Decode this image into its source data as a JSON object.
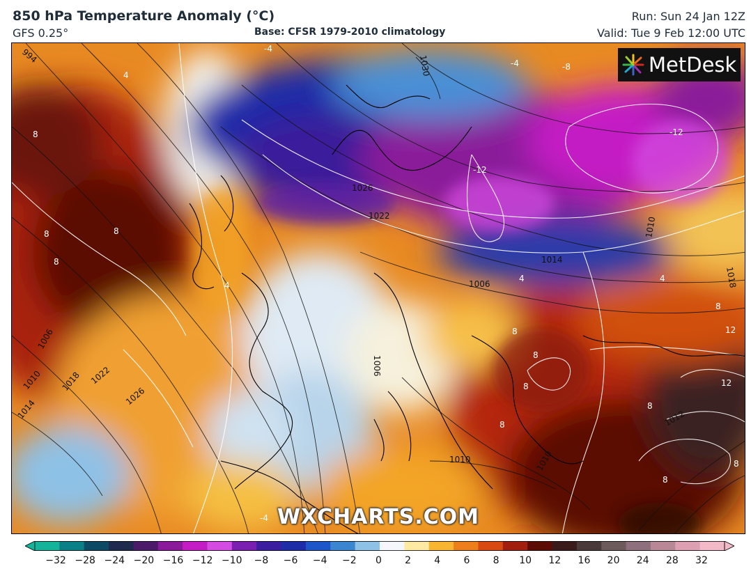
{
  "header": {
    "title": "850 hPa Temperature Anomaly (°C)",
    "model": "GFS 0.25°",
    "base": "Base: CFSR 1979-2010 climatology",
    "run": "Run: Sun 24 Jan 12Z",
    "valid": "Valid: Tue 9 Feb 12:00 UTC"
  },
  "logo": {
    "text": "MetDesk",
    "icon": "color-burst-icon"
  },
  "watermark": "WXCHARTS.COM",
  "colorbar": {
    "ticks": [
      "−32",
      "−28",
      "−24",
      "−20",
      "−16",
      "−12",
      "−10",
      "−8",
      "−6",
      "−4",
      "−2",
      "0",
      "2",
      "4",
      "6",
      "8",
      "10",
      "12",
      "16",
      "20",
      "24",
      "28",
      "32"
    ],
    "colors": [
      "#15b39a",
      "#0b7f86",
      "#0c4a66",
      "#1f2a4f",
      "#4b1a6b",
      "#8a1a9a",
      "#c41cc4",
      "#d34be0",
      "#7a1fb0",
      "#3b1ea0",
      "#1e2ca8",
      "#1d56c8",
      "#3a86d0",
      "#8ec1e6",
      "#f4f7fb",
      "#ffe9a3",
      "#f7b531",
      "#ec7f1c",
      "#d94a12",
      "#a21e0d",
      "#5c0c05",
      "#3a1a1a",
      "#4b3a3a",
      "#6d5a5a",
      "#8e6f7e",
      "#b88897",
      "#dca0b2",
      "#f2b9c8"
    ]
  },
  "map": {
    "isotherm_labels": [
      "-4",
      "-4",
      "-8",
      "-12",
      "-12",
      "4",
      "8",
      "8",
      "8",
      "4",
      "4",
      "8",
      "8",
      "8",
      "8",
      "8",
      "12",
      "12",
      "8",
      "8",
      "4",
      "8",
      "8",
      "-4"
    ],
    "isobar_labels": [
      "994",
      "1030",
      "1026",
      "1022",
      "1010",
      "1014",
      "1018",
      "1006",
      "1006",
      "1010",
      "1014",
      "1018",
      "1022",
      "1026",
      "1006",
      "1010",
      "1012",
      "1010"
    ]
  }
}
